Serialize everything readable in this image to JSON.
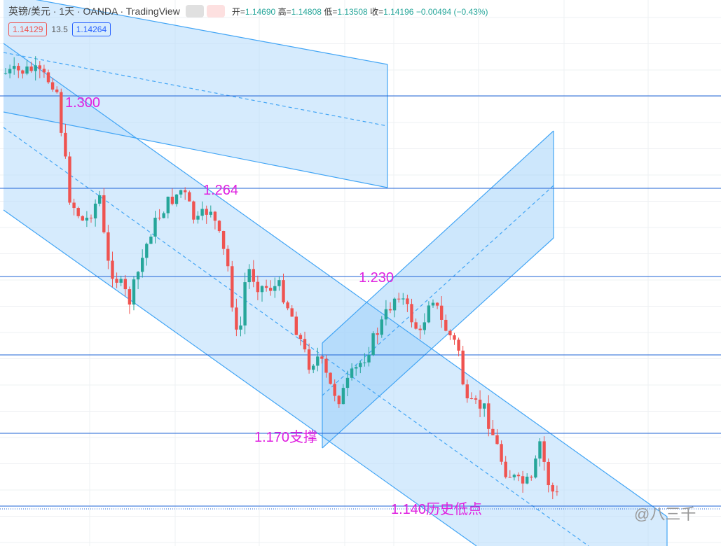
{
  "header": {
    "title": "英镑/美元 · 1天 · OANDA · TradingView",
    "ohlc": [
      {
        "label": "开=",
        "value": "1.14690"
      },
      {
        "label": "高=",
        "value": "1.14808"
      },
      {
        "label": "低=",
        "value": "1.13508"
      },
      {
        "label": "收=",
        "value": "1.14196"
      }
    ],
    "change": "−0.00494 (−0.43%)"
  },
  "price_boxes": [
    "1.14129",
    "13.5",
    "1.14264"
  ],
  "annotations": [
    "1.300",
    "1.264",
    "1.230",
    "1.170支撑",
    "1.140历史低点"
  ],
  "watermark": "@八三千"
}
